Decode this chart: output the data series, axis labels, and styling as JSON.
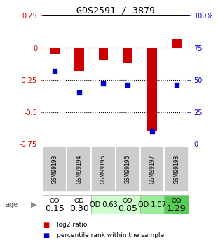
{
  "title": "GDS2591 / 3879",
  "samples": [
    "GSM99193",
    "GSM99194",
    "GSM99195",
    "GSM99196",
    "GSM99197",
    "GSM99198"
  ],
  "log2_ratios": [
    -0.05,
    -0.18,
    -0.1,
    -0.12,
    -0.65,
    0.07
  ],
  "percentile_ranks": [
    57,
    40,
    47,
    46,
    10,
    46
  ],
  "age_labels_line1": [
    "OD",
    "OD",
    "OD 0.63",
    "OD",
    "OD 1.07",
    "OD"
  ],
  "age_labels_line2": [
    "0.15",
    "0.30",
    "",
    "0.85",
    "",
    "1.29"
  ],
  "age_colors": [
    "#ffffff",
    "#ffffff",
    "#ccffcc",
    "#ccffcc",
    "#99ee99",
    "#55cc55"
  ],
  "age_fontsize_main": [
    9,
    9,
    7,
    9,
    7,
    9
  ],
  "ylim_left": [
    -0.75,
    0.25
  ],
  "ylim_right": [
    0,
    100
  ],
  "yticks_left": [
    -0.75,
    -0.5,
    -0.25,
    0,
    0.25
  ],
  "yticks_left_labels": [
    "-0.75",
    "-0.5",
    "-0.25",
    "0",
    "0.25"
  ],
  "yticks_right": [
    0,
    25,
    50,
    75,
    100
  ],
  "yticks_right_labels": [
    "0",
    "25",
    "50",
    "75",
    "100%"
  ],
  "bar_color": "#cc0000",
  "dot_color": "#0000cc",
  "hline_dashed_color": "#cc0000",
  "hline_dot_color": "#000000",
  "sample_bg_color": "#cccccc",
  "legend_red": "log2 ratio",
  "legend_blue": "percentile rank within the sample",
  "bar_width": 0.4
}
